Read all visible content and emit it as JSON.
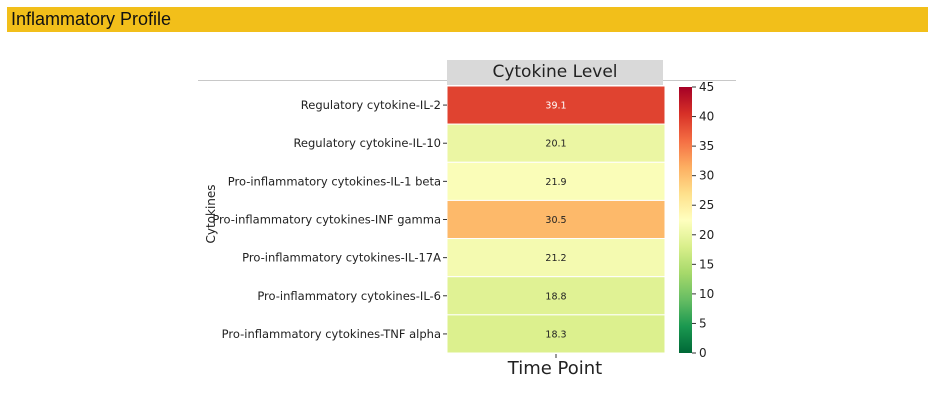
{
  "header": {
    "title": "Inflammatory Profile"
  },
  "chart_data": {
    "type": "heatmap",
    "title": "Cytokine Level",
    "xlabel": "Time Point",
    "ylabel": "Cytokines",
    "categories": [
      "Regulatory cytokine-IL-2",
      "Regulatory cytokine-IL-10",
      "Pro-inflammatory cytokines-IL-1 beta",
      "Pro-inflammatory cytokines-INF gamma",
      "Pro-inflammatory cytokines-IL-17A",
      "Pro-inflammatory cytokines-IL-6",
      "Pro-inflammatory cytokines-TNF alpha"
    ],
    "values": [
      39.1,
      20.1,
      21.9,
      30.5,
      21.2,
      18.8,
      18.3
    ],
    "value_labels": [
      "39.1",
      "20.1",
      "21.9",
      "30.5",
      "21.2",
      "18.8",
      "18.3"
    ],
    "colorbar": {
      "range": [
        0,
        45
      ],
      "ticks": [
        "0",
        "5",
        "10",
        "15",
        "20",
        "25",
        "30",
        "35",
        "40",
        "45"
      ],
      "colormap": "RdYlGn_r",
      "colors": [
        "#006837",
        "#1a9850",
        "#66bd63",
        "#a6d96a",
        "#d9ef8b",
        "#ffffbf",
        "#fee08b",
        "#fdae61",
        "#f46d43",
        "#d73027",
        "#a50026"
      ]
    },
    "grid": false,
    "legend": "colorbar-right"
  }
}
